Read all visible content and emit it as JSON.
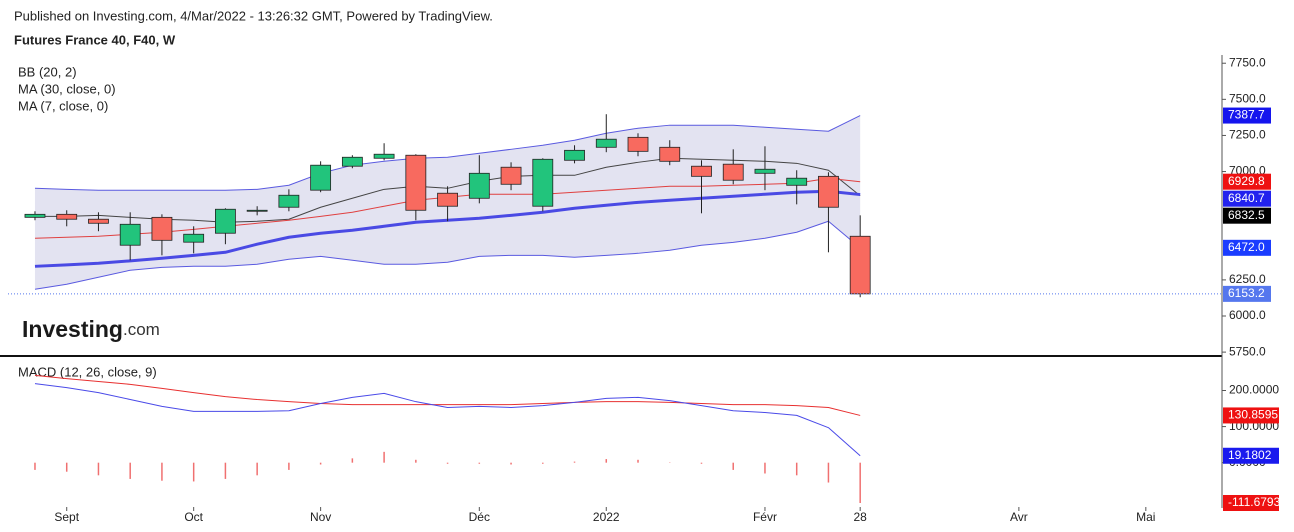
{
  "header": {
    "published": "Published on Investing.com, 4/Mar/2022 - 13:26:32 GMT, Powered by TradingView.",
    "title": "Futures France 40, F40, W"
  },
  "logo": {
    "name": "Investing",
    "suffix": ".com"
  },
  "chart_data": [
    {
      "type": "candlestick",
      "open": [
        6683,
        6704,
        6670,
        6490,
        6683,
        6511,
        6573,
        6725,
        6753,
        6871,
        7037,
        7092,
        7113,
        6850,
        6815,
        7030,
        6760,
        7078,
        7168,
        7237,
        7168,
        7037,
        7051,
        6988,
        6905,
        6967,
        6552
      ],
      "high": [
        6725,
        6732,
        6718,
        6718,
        6704,
        6621,
        6746,
        6760,
        6877,
        7071,
        7113,
        7196,
        7120,
        6898,
        7113,
        7064,
        7092,
        7182,
        7397,
        7265,
        7217,
        7078,
        7154,
        7175,
        7009,
        6995,
        6697
      ],
      "low": [
        6663,
        6621,
        6587,
        6386,
        6420,
        6434,
        6497,
        6697,
        6725,
        6857,
        7023,
        7078,
        6663,
        6656,
        6780,
        6871,
        6725,
        7057,
        7134,
        7106,
        7044,
        6711,
        6912,
        6871,
        6773,
        6441,
        6130
      ],
      "close": [
        6704,
        6670,
        6642,
        6635,
        6524,
        6566,
        6739,
        6732,
        6836,
        7044,
        7099,
        7120,
        6732,
        6760,
        6988,
        6912,
        7085,
        7147,
        7224,
        7140,
        7071,
        6967,
        6940,
        7016,
        6954,
        6753,
        6153.2
      ],
      "close_label": "6153.2",
      "close_badge_color": "#5577ee",
      "up_color": "#22c47c",
      "down_color": "#f86a5f",
      "xlim": [
        -0.85,
        37.4
      ],
      "xticks": [
        {
          "value": 1,
          "label": "Sept"
        },
        {
          "value": 5,
          "label": "Oct"
        },
        {
          "value": 9,
          "label": "Nov"
        },
        {
          "value": 14,
          "label": "Déc"
        },
        {
          "value": 18,
          "label": "2022"
        },
        {
          "value": 23,
          "label": "Févr"
        },
        {
          "value": 26,
          "label": "28"
        },
        {
          "value": 31,
          "label": "Avr"
        },
        {
          "value": 35,
          "label": "Mai"
        }
      ],
      "ylim": [
        5730,
        7800
      ],
      "yticks": [
        {
          "value": 7750,
          "label": "7750.0"
        },
        {
          "value": 7500,
          "label": "7500.0"
        },
        {
          "value": 7250,
          "label": "7250.0"
        },
        {
          "value": 7000,
          "label": "7000.0"
        },
        {
          "value": 6250,
          "label": "6250.0"
        },
        {
          "value": 6000,
          "label": "6000.0"
        },
        {
          "value": 5750,
          "label": "5750.0"
        }
      ],
      "bands": {
        "name": "BB (20, 2)",
        "fill": "#e3e3f1",
        "color": "#5a5ae0",
        "middle_color": "#444444",
        "upper": [
          6884,
          6877,
          6871,
          6871,
          6871,
          6871,
          6871,
          6877,
          6905,
          6988,
          7044,
          7071,
          7092,
          7099,
          7127,
          7154,
          7182,
          7217,
          7265,
          7300,
          7321,
          7321,
          7321,
          7307,
          7293,
          7279,
          7387.7
        ],
        "middle": [
          6690,
          6690,
          6697,
          6683,
          6670,
          6663,
          6649,
          6656,
          6670,
          6753,
          6815,
          6877,
          6898,
          6884,
          6933,
          6967,
          6974,
          6974,
          7030,
          7064,
          7092,
          7085,
          7078,
          7071,
          7057,
          7009,
          6832.5
        ],
        "lower": [
          6185,
          6220,
          6268,
          6317,
          6337,
          6344,
          6344,
          6358,
          6393,
          6413,
          6386,
          6358,
          6358,
          6372,
          6413,
          6420,
          6420,
          6407,
          6420,
          6434,
          6455,
          6490,
          6510,
          6538,
          6580,
          6656,
          6472.0
        ],
        "upper_label": "7387.7",
        "middle_label": "6832.5",
        "lower_label": "6472.0",
        "upper_badge": "#1414ee",
        "middle_badge": "#000000",
        "lower_badge": "#1a3cff"
      },
      "series": [
        {
          "name": "MA (30, close, 0)",
          "color": "#4a4ae4",
          "width": 3,
          "badge_color": "#2222ee",
          "last_label": "6840.7",
          "values": [
            6344,
            6354,
            6365,
            6382,
            6400,
            6420,
            6441,
            6497,
            6545,
            6573,
            6594,
            6621,
            6649,
            6663,
            6677,
            6697,
            6718,
            6746,
            6767,
            6787,
            6801,
            6815,
            6829,
            6843,
            6857,
            6864,
            6840.7
          ]
        },
        {
          "name": "MA (7, close, 0)",
          "color": "#e04040",
          "width": 1,
          "badge_color": "#ee1111",
          "last_label": "6929.8",
          "values": [
            6538,
            6545,
            6552,
            6566,
            6580,
            6600,
            6621,
            6642,
            6663,
            6690,
            6718,
            6760,
            6801,
            6822,
            6843,
            6843,
            6843,
            6857,
            6871,
            6884,
            6898,
            6898,
            6905,
            6912,
            6919,
            6954,
            6929.8
          ]
        }
      ]
    },
    {
      "type": "macd",
      "name": "MACD (12, 26, close, 9)",
      "macd": [
        219,
        208,
        194,
        175,
        156,
        142,
        142,
        142,
        144,
        164,
        181,
        192,
        169,
        153,
        156,
        153,
        158,
        167,
        178,
        181,
        172,
        158,
        144,
        139,
        131,
        97,
        19.1802
      ],
      "signal": [
        242,
        233,
        225,
        217,
        206,
        194,
        183,
        175,
        169,
        164,
        161,
        161,
        161,
        161,
        161,
        161,
        164,
        167,
        169,
        169,
        167,
        164,
        161,
        161,
        158,
        153,
        130.8595
      ],
      "histogram": [
        -20,
        -25,
        -35,
        -45,
        -50,
        -52,
        -45,
        -35,
        -20,
        -5,
        12,
        30,
        8,
        -3,
        -3,
        -5,
        -3,
        3,
        10,
        8,
        1,
        -3,
        -20,
        -30,
        -35,
        -55,
        -111.6793
      ],
      "macd_label": "19.1802",
      "signal_label": "130.8595",
      "histogram_label": "-111.6793",
      "macd_color": "#4a4ae8",
      "signal_color": "#e83030",
      "histogram_color": "#f07070",
      "macd_badge": "#1a1aee",
      "signal_badge": "#ee1111",
      "histogram_badge": "#ee1111",
      "ylim": [
        -120,
        290
      ],
      "yticks": [
        {
          "value": 200,
          "label": "200.0000"
        },
        {
          "value": 100,
          "label": "100.0000"
        },
        {
          "value": 0,
          "label": "0.0000"
        }
      ]
    }
  ]
}
